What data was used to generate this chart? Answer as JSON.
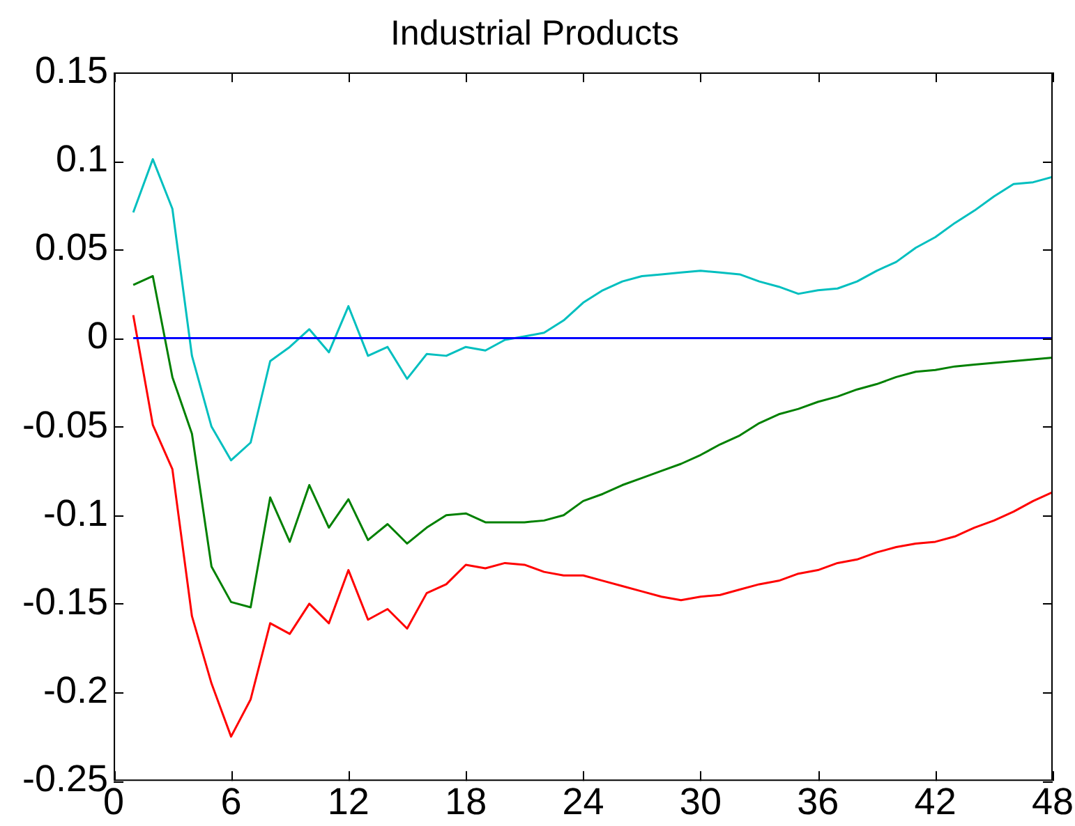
{
  "chart_data": {
    "type": "line",
    "title": "Industrial Products",
    "x": [
      1,
      2,
      3,
      4,
      5,
      6,
      7,
      8,
      9,
      10,
      11,
      12,
      13,
      14,
      15,
      16,
      17,
      18,
      19,
      20,
      21,
      22,
      23,
      24,
      25,
      26,
      27,
      28,
      29,
      30,
      31,
      32,
      33,
      34,
      35,
      36,
      37,
      38,
      39,
      40,
      41,
      42,
      43,
      44,
      45,
      46,
      47,
      48
    ],
    "series": [
      {
        "color": "#0000ff",
        "values": [
          0,
          0,
          0,
          0,
          0,
          0,
          0,
          0,
          0,
          0,
          0,
          0,
          0,
          0,
          0,
          0,
          0,
          0,
          0,
          0,
          0,
          0,
          0,
          0,
          0,
          0,
          0,
          0,
          0,
          0,
          0,
          0,
          0,
          0,
          0,
          0,
          0,
          0,
          0,
          0,
          0,
          0,
          0,
          0,
          0,
          0,
          0,
          0
        ]
      },
      {
        "color": "#00bfbf",
        "values": [
          0.071,
          0.101,
          0.073,
          -0.01,
          -0.05,
          -0.069,
          -0.059,
          -0.013,
          -0.005,
          0.005,
          -0.008,
          0.018,
          -0.01,
          -0.005,
          -0.023,
          -0.009,
          -0.01,
          -0.005,
          -0.007,
          -0.001,
          0.001,
          0.003,
          0.01,
          0.02,
          0.027,
          0.032,
          0.035,
          0.036,
          0.037,
          0.038,
          0.037,
          0.036,
          0.032,
          0.029,
          0.025,
          0.027,
          0.028,
          0.032,
          0.038,
          0.043,
          0.051,
          0.057,
          0.065,
          0.072,
          0.08,
          0.087,
          0.088,
          0.091
        ]
      },
      {
        "color": "#008000",
        "values": [
          0.03,
          0.035,
          -0.022,
          -0.054,
          -0.129,
          -0.149,
          -0.152,
          -0.09,
          -0.115,
          -0.083,
          -0.107,
          -0.091,
          -0.114,
          -0.105,
          -0.116,
          -0.107,
          -0.1,
          -0.099,
          -0.104,
          -0.104,
          -0.104,
          -0.103,
          -0.1,
          -0.092,
          -0.088,
          -0.083,
          -0.079,
          -0.075,
          -0.071,
          -0.066,
          -0.06,
          -0.055,
          -0.048,
          -0.043,
          -0.04,
          -0.036,
          -0.033,
          -0.029,
          -0.026,
          -0.022,
          -0.019,
          -0.018,
          -0.016,
          -0.015,
          -0.014,
          -0.013,
          -0.012,
          -0.011
        ]
      },
      {
        "color": "#ff0000",
        "values": [
          0.013,
          -0.049,
          -0.074,
          -0.157,
          -0.195,
          -0.225,
          -0.204,
          -0.161,
          -0.167,
          -0.15,
          -0.161,
          -0.131,
          -0.159,
          -0.153,
          -0.164,
          -0.144,
          -0.139,
          -0.128,
          -0.13,
          -0.127,
          -0.128,
          -0.132,
          -0.134,
          -0.134,
          -0.137,
          -0.14,
          -0.143,
          -0.146,
          -0.148,
          -0.146,
          -0.145,
          -0.142,
          -0.139,
          -0.137,
          -0.133,
          -0.131,
          -0.127,
          -0.125,
          -0.121,
          -0.118,
          -0.116,
          -0.115,
          -0.112,
          -0.107,
          -0.103,
          -0.098,
          -0.092,
          -0.087
        ]
      }
    ],
    "xlim": [
      0,
      48
    ],
    "xticks": [
      0,
      6,
      12,
      18,
      24,
      30,
      36,
      42,
      48
    ],
    "ylim": [
      -0.25,
      0.15
    ],
    "yticks": [
      -0.25,
      -0.2,
      -0.15,
      -0.1,
      -0.05,
      0,
      0.05,
      0.1,
      0.15
    ],
    "grid": false,
    "legend": false,
    "marker": "none",
    "line_style": "solid"
  }
}
